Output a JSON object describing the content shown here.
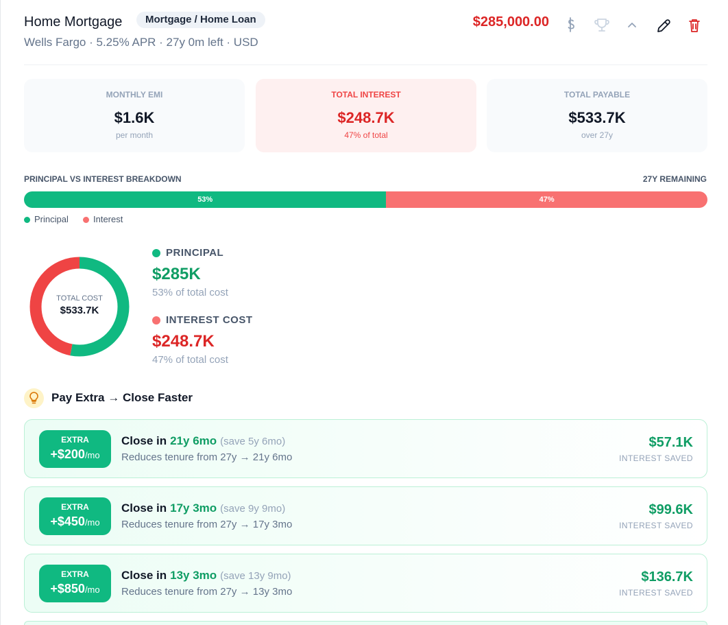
{
  "header": {
    "title": "Home Mortgage",
    "badge": "Mortgage / Home Loan",
    "subtitle": "Wells Fargo · 5.25% APR · 27y 0m left · USD",
    "amount": "$285,000.00"
  },
  "stats": [
    {
      "label": "MONTHLY EMI",
      "value": "$1.6K",
      "note": "per month"
    },
    {
      "label": "TOTAL INTEREST",
      "value": "$248.7K",
      "note": "47% of total"
    },
    {
      "label": "TOTAL PAYABLE",
      "value": "$533.7K",
      "note": "over 27y"
    }
  ],
  "breakdown": {
    "title": "PRINCIPAL VS INTEREST BREAKDOWN",
    "remaining": "27Y REMAINING",
    "segments": [
      {
        "name": "Principal",
        "value": 53,
        "label": "53%",
        "color": "#10b981"
      },
      {
        "name": "Interest",
        "value": 47,
        "label": "47%",
        "color": "#f87171"
      }
    ]
  },
  "donut": {
    "center_label": "TOTAL COST",
    "center_value": "$533.7K",
    "items": [
      {
        "name": "PRINCIPAL",
        "amount": "$285K",
        "note": "53% of total cost"
      },
      {
        "name": "INTEREST COST",
        "amount": "$248.7K",
        "note": "47% of total cost"
      }
    ]
  },
  "extra": {
    "title": "Pay Extra → Close Faster",
    "scenarios": [
      {
        "tag": "EXTRA",
        "amount": "+$200",
        "unit": "/mo",
        "prefix": "Close in",
        "term": "21y 6mo",
        "save": "(save 5y 6mo)",
        "detail": "Reduces tenure from 27y → 21y 6mo",
        "saved": "$57.1K",
        "saved_label": "INTEREST SAVED"
      },
      {
        "tag": "EXTRA",
        "amount": "+$450",
        "unit": "/mo",
        "prefix": "Close in",
        "term": "17y 3mo",
        "save": "(save 9y 9mo)",
        "detail": "Reduces tenure from 27y → 17y 3mo",
        "saved": "$99.6K",
        "saved_label": "INTEREST SAVED"
      },
      {
        "tag": "EXTRA",
        "amount": "+$850",
        "unit": "/mo",
        "prefix": "Close in",
        "term": "13y 3mo",
        "save": "(save 13y 9mo)",
        "detail": "Reduces tenure from 27y → 13y 3mo",
        "saved": "$136.7K",
        "saved_label": "INTEREST SAVED"
      }
    ]
  }
}
